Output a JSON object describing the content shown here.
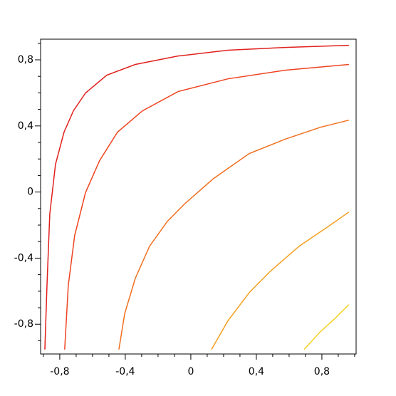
{
  "chart_data": {
    "type": "line",
    "xlim": [
      -0.917,
      1.009
    ],
    "ylim": [
      -0.98,
      0.925
    ],
    "xticks": [
      {
        "value": -0.8,
        "label": "-0,8"
      },
      {
        "value": -0.4,
        "label": "-0,4"
      },
      0,
      {
        "value": 0.4,
        "label": "0,4"
      },
      {
        "value": 0.8,
        "label": "0,8"
      }
    ],
    "yticks": [
      {
        "value": -0.8,
        "label": "-0,8"
      },
      {
        "value": -0.4,
        "label": "-0,4"
      },
      0,
      {
        "value": 0.4,
        "label": "0,4"
      },
      {
        "value": 0.8,
        "label": "0,8"
      }
    ],
    "xminorticks": [
      -0.9,
      -0.7,
      -0.6,
      -0.5,
      -0.3,
      -0.2,
      -0.1,
      0.1,
      0.2,
      0.3,
      0.5,
      0.6,
      0.7,
      0.9,
      1.0
    ],
    "yminorticks": [
      -0.9,
      -0.7,
      -0.6,
      -0.5,
      -0.3,
      -0.2,
      -0.1,
      0.1,
      0.2,
      0.3,
      0.5,
      0.6,
      0.7,
      0.9
    ],
    "series": [
      {
        "color": "#e0201c",
        "x": [
          -0.891,
          -0.878,
          -0.861,
          -0.826,
          -0.774,
          -0.717,
          -0.643,
          -0.513,
          -0.339,
          -0.078,
          0.226,
          0.574,
          0.965
        ],
        "values": [
          -0.953,
          -0.565,
          -0.134,
          0.168,
          0.362,
          0.491,
          0.599,
          0.707,
          0.772,
          0.823,
          0.858,
          0.875,
          0.888
        ]
      },
      {
        "color": "#ee4420",
        "x": [
          -0.77,
          -0.748,
          -0.709,
          -0.643,
          -0.557,
          -0.448,
          -0.296,
          -0.078,
          0.226,
          0.574,
          0.965
        ],
        "values": [
          -0.953,
          -0.565,
          -0.263,
          -0.004,
          0.19,
          0.362,
          0.491,
          0.608,
          0.685,
          0.737,
          0.772
        ]
      },
      {
        "color": "#f07020",
        "x": [
          -0.439,
          -0.404,
          -0.339,
          -0.252,
          -0.143,
          -0.035,
          0.139,
          0.357,
          0.574,
          0.791,
          0.965
        ],
        "values": [
          -0.953,
          -0.737,
          -0.522,
          -0.328,
          -0.177,
          -0.069,
          0.082,
          0.233,
          0.319,
          0.392,
          0.435
        ]
      },
      {
        "color": "#f3a020",
        "x": [
          0.126,
          0.226,
          0.357,
          0.487,
          0.661,
          0.835,
          0.965
        ],
        "values": [
          -0.953,
          -0.78,
          -0.608,
          -0.478,
          -0.328,
          -0.211,
          -0.121
        ]
      },
      {
        "color": "#f4d020",
        "x": [
          0.691,
          0.791,
          0.878,
          0.965
        ],
        "values": [
          -0.953,
          -0.845,
          -0.767,
          -0.681
        ]
      }
    ]
  }
}
